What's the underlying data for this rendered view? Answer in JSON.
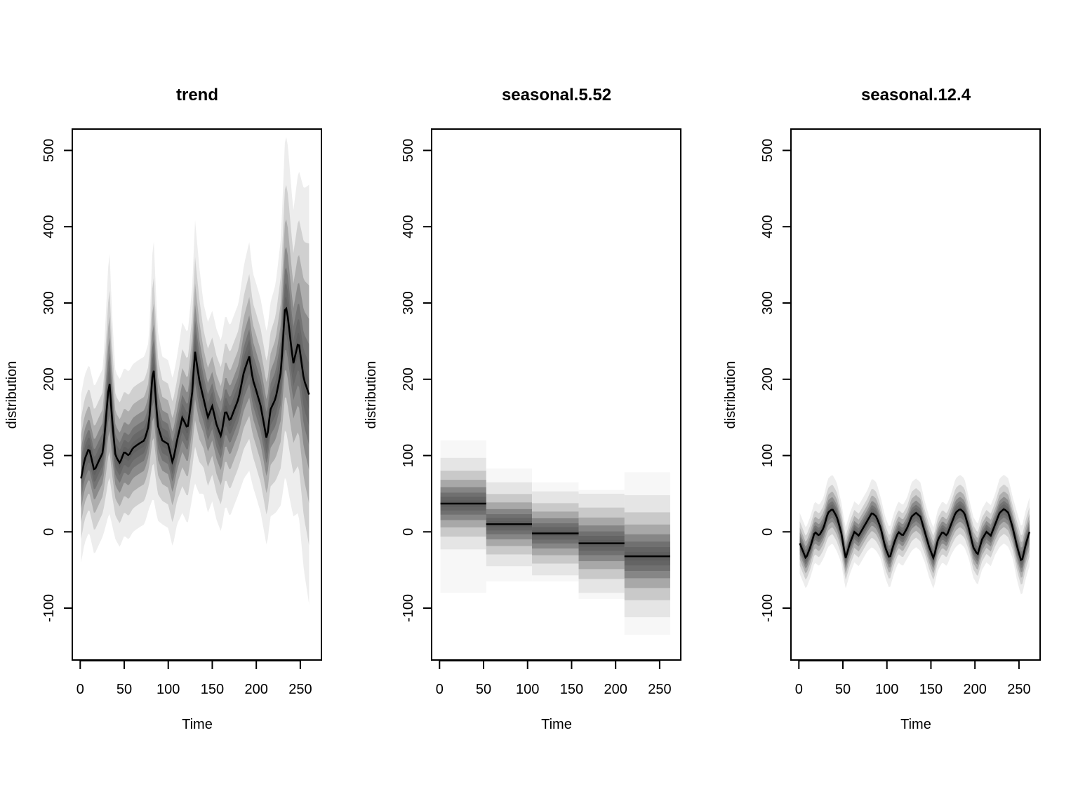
{
  "chart_data": [
    {
      "type": "area",
      "title": "trend",
      "xlabel": "Time",
      "ylabel": "distribution",
      "xlim": [
        -9,
        274
      ],
      "ylim": [
        -168,
        528
      ],
      "xticks": [
        0,
        50,
        100,
        150,
        200,
        250
      ],
      "yticks": [
        -100,
        0,
        100,
        200,
        300,
        400,
        500
      ],
      "xtick_labels": [
        "0",
        "50",
        "100",
        "150",
        "200",
        "250"
      ],
      "ytick_labels": [
        "-100",
        "0",
        "100",
        "200",
        "300",
        "400",
        "500"
      ],
      "color": "#000000",
      "series": [
        {
          "x": [
            1,
            5,
            10,
            16,
            20,
            26,
            33,
            36,
            40,
            45,
            50,
            55,
            60,
            66,
            73,
            78,
            83,
            88,
            93,
            100,
            105,
            110,
            116,
            122,
            128,
            130,
            135,
            140,
            145,
            150,
            155,
            160,
            165,
            170,
            175,
            180,
            186,
            192,
            196,
            200,
            205,
            212,
            216,
            222,
            228,
            233,
            236,
            242,
            248,
            254,
            260
          ],
          "values": [
            70,
            95,
            110,
            80,
            90,
            105,
            200,
            150,
            100,
            90,
            105,
            100,
            110,
            115,
            120,
            140,
            220,
            140,
            120,
            115,
            90,
            120,
            150,
            135,
            190,
            240,
            200,
            175,
            150,
            165,
            140,
            125,
            160,
            145,
            160,
            175,
            210,
            230,
            200,
            185,
            165,
            120,
            160,
            175,
            210,
            300,
            280,
            220,
            250,
            200,
            180
          ],
          "spread": [
            22,
            22,
            22,
            22,
            22,
            22,
            35,
            28,
            22,
            22,
            22,
            22,
            22,
            22,
            22,
            22,
            35,
            25,
            22,
            22,
            22,
            22,
            25,
            25,
            28,
            35,
            30,
            25,
            25,
            25,
            25,
            25,
            25,
            25,
            25,
            25,
            28,
            30,
            28,
            28,
            28,
            28,
            28,
            30,
            35,
            45,
            45,
            40,
            45,
            50,
            55
          ]
        }
      ]
    },
    {
      "type": "area",
      "title": "seasonal.5.52",
      "xlabel": "Time",
      "ylabel": "distribution",
      "xlim": [
        -9,
        274
      ],
      "ylim": [
        -168,
        528
      ],
      "xticks": [
        0,
        50,
        100,
        150,
        200,
        250
      ],
      "yticks": [
        -100,
        0,
        100,
        200,
        300,
        400,
        500
      ],
      "xtick_labels": [
        "0",
        "50",
        "100",
        "150",
        "200",
        "250"
      ],
      "ytick_labels": [
        "-100",
        "0",
        "100",
        "200",
        "300",
        "400",
        "500"
      ],
      "color": "#000000",
      "segments": [
        {
          "x0": 1,
          "x1": 53,
          "center": 37,
          "spread": 12,
          "lo": -80,
          "hi": 120
        },
        {
          "x0": 53,
          "x1": 105,
          "center": 10,
          "spread": 11,
          "lo": -65,
          "hi": 83
        },
        {
          "x0": 105,
          "x1": 158,
          "center": -2,
          "spread": 11,
          "lo": -65,
          "hi": 65
        },
        {
          "x0": 158,
          "x1": 210,
          "center": -15,
          "spread": 13,
          "lo": -88,
          "hi": 55
        },
        {
          "x0": 210,
          "x1": 262,
          "center": -32,
          "spread": 16,
          "lo": -135,
          "hi": 78
        }
      ]
    },
    {
      "type": "area",
      "title": "seasonal.12.4",
      "xlabel": "Time",
      "ylabel": "distribution",
      "xlim": [
        -9,
        274
      ],
      "ylim": [
        -168,
        528
      ],
      "xticks": [
        0,
        50,
        100,
        150,
        200,
        250
      ],
      "yticks": [
        -100,
        0,
        100,
        200,
        300,
        400,
        500
      ],
      "xtick_labels": [
        "0",
        "50",
        "100",
        "150",
        "200",
        "250"
      ],
      "ytick_labels": [
        "-100",
        "0",
        "100",
        "200",
        "300",
        "400",
        "500"
      ],
      "color": "#000000",
      "series": [
        {
          "x": [
            1,
            8,
            13,
            18,
            23,
            28,
            33,
            38,
            43,
            48,
            53,
            58,
            63,
            68,
            73,
            78,
            83,
            88,
            93,
            98,
            103,
            108,
            113,
            118,
            123,
            128,
            133,
            138,
            143,
            148,
            153,
            158,
            163,
            168,
            173,
            178,
            183,
            188,
            193,
            198,
            203,
            208,
            213,
            218,
            223,
            228,
            233,
            238,
            243,
            248,
            253,
            258,
            262
          ],
          "values": [
            -15,
            -35,
            -20,
            0,
            -5,
            5,
            25,
            30,
            20,
            0,
            -35,
            -15,
            0,
            -5,
            5,
            15,
            25,
            20,
            5,
            -20,
            -35,
            -15,
            0,
            -5,
            5,
            20,
            25,
            20,
            0,
            -20,
            -35,
            -10,
            0,
            -5,
            10,
            25,
            30,
            25,
            5,
            -20,
            -30,
            -10,
            0,
            -5,
            10,
            25,
            30,
            25,
            5,
            -20,
            -40,
            -15,
            0
          ],
          "spread": [
            8,
            8,
            8,
            8,
            8,
            8,
            9,
            9,
            9,
            8,
            8,
            8,
            8,
            8,
            8,
            8,
            9,
            9,
            8,
            8,
            8,
            8,
            8,
            8,
            8,
            9,
            9,
            9,
            8,
            8,
            8,
            8,
            8,
            8,
            8,
            9,
            9,
            9,
            8,
            8,
            8,
            8,
            8,
            8,
            8,
            9,
            9,
            9,
            8,
            9,
            9,
            9,
            9
          ]
        }
      ]
    }
  ]
}
